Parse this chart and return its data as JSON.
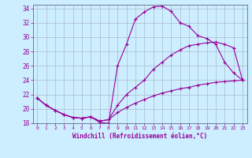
{
  "xlabel": "Windchill (Refroidissement éolien,°C)",
  "bg_color": "#cceeff",
  "grid_color": "#aabbcc",
  "line_color": "#990099",
  "xlim": [
    -0.5,
    23.5
  ],
  "ylim": [
    18,
    34.5
  ],
  "yticks": [
    18,
    20,
    22,
    24,
    26,
    28,
    30,
    32,
    34
  ],
  "xticks": [
    0,
    1,
    2,
    3,
    4,
    5,
    6,
    7,
    8,
    9,
    10,
    11,
    12,
    13,
    14,
    15,
    16,
    17,
    18,
    19,
    20,
    21,
    22,
    23
  ],
  "line1_x": [
    0,
    1,
    2,
    3,
    4,
    5,
    6,
    7,
    8,
    9,
    10,
    11,
    12,
    13,
    14,
    15,
    16,
    17,
    18,
    19,
    20,
    21,
    22,
    23
  ],
  "line1_y": [
    21.5,
    20.5,
    19.8,
    19.2,
    18.8,
    18.7,
    18.9,
    18.1,
    18.0,
    26.0,
    29.0,
    32.5,
    33.5,
    34.2,
    34.3,
    33.6,
    32.0,
    31.5,
    30.2,
    29.8,
    29.0,
    26.5,
    25.0,
    24.0
  ],
  "line2_x": [
    0,
    1,
    2,
    3,
    4,
    5,
    6,
    7,
    8,
    9,
    10,
    11,
    12,
    13,
    14,
    15,
    16,
    17,
    18,
    19,
    20,
    21,
    22,
    23
  ],
  "line2_y": [
    21.5,
    20.5,
    19.8,
    19.2,
    18.8,
    18.7,
    18.9,
    18.3,
    18.5,
    20.5,
    22.0,
    23.0,
    24.0,
    25.5,
    26.5,
    27.5,
    28.2,
    28.8,
    29.0,
    29.2,
    29.3,
    29.0,
    28.5,
    24.0
  ],
  "line3_x": [
    0,
    1,
    2,
    3,
    4,
    5,
    6,
    7,
    8,
    9,
    10,
    11,
    12,
    13,
    14,
    15,
    16,
    17,
    18,
    19,
    20,
    21,
    22,
    23
  ],
  "line3_y": [
    21.5,
    20.5,
    19.8,
    19.2,
    18.8,
    18.7,
    18.9,
    18.3,
    18.5,
    19.5,
    20.2,
    20.8,
    21.3,
    21.8,
    22.2,
    22.5,
    22.8,
    23.0,
    23.3,
    23.5,
    23.7,
    23.8,
    23.9,
    24.0
  ]
}
